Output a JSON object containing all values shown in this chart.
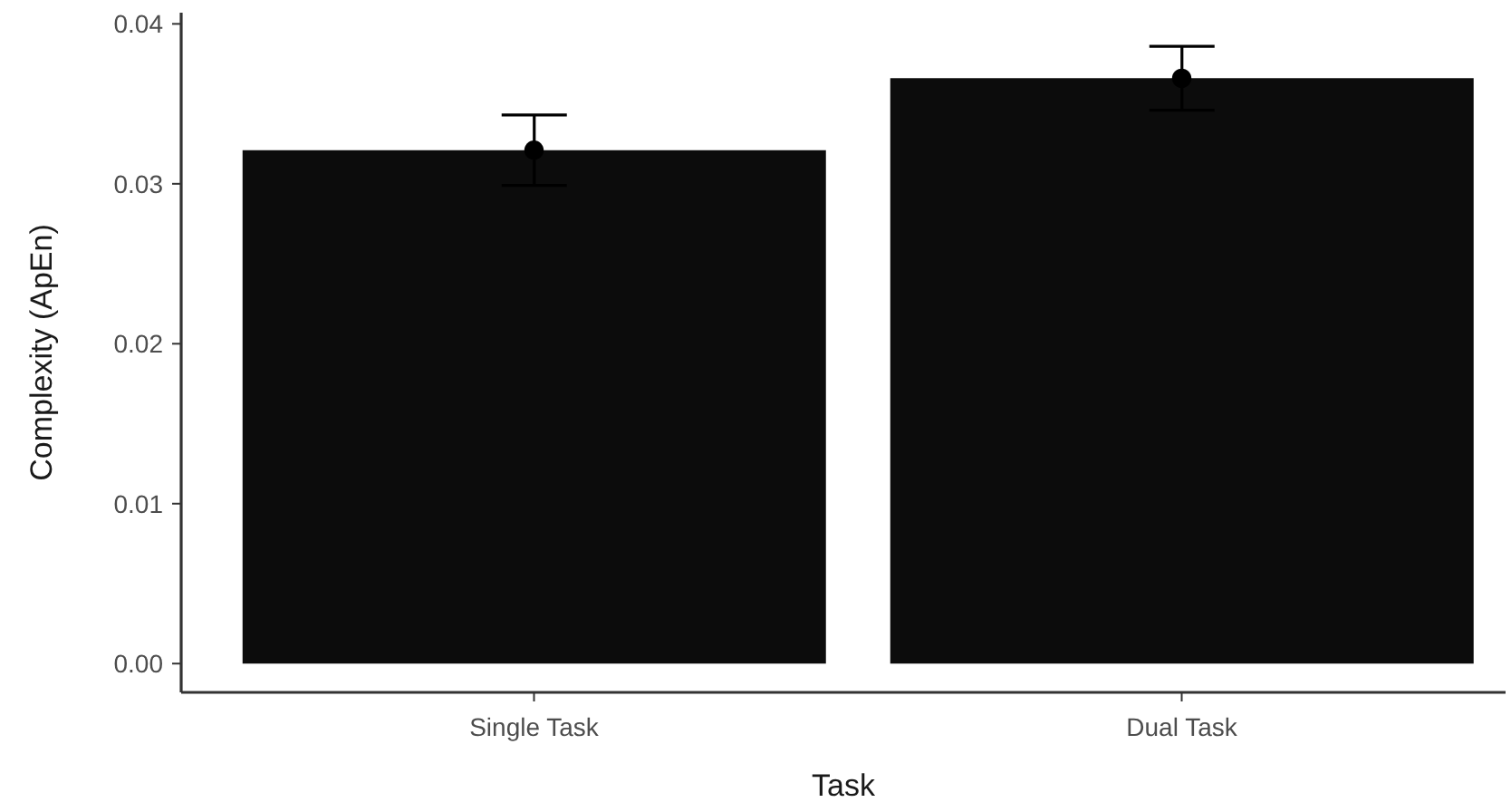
{
  "chart_data": {
    "type": "bar",
    "categories": [
      "Single Task",
      "Dual Task"
    ],
    "xlabel": "Task",
    "ylabel": "Complexity (ApEn)",
    "series": [
      {
        "color": "#0c0c0c",
        "values": [
          0.0321,
          0.0366
        ],
        "errors": [
          0.0022,
          0.002
        ]
      },
      {
        "type": "scatter",
        "color": "#000000",
        "x": [
          "Single Task",
          "Dual Task"
        ],
        "values": [
          0.0321,
          0.0366
        ]
      }
    ],
    "marker": "circle",
    "ylim": [
      -0.0018,
      0.0407
    ],
    "yticks": [
      {
        "value": 0,
        "label": "0.00"
      },
      0.01,
      0.02,
      0.03,
      0.04
    ],
    "grid": false,
    "legend": false
  }
}
